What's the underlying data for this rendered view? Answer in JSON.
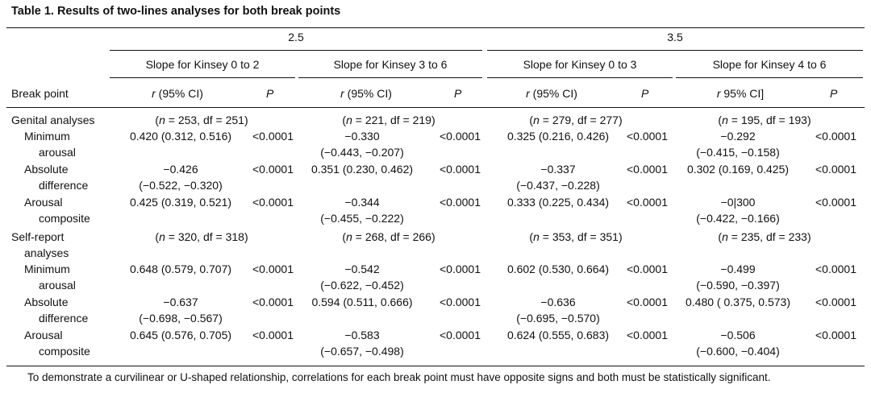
{
  "title": "Table 1.   Results of two-lines analyses for both break points",
  "groups": [
    "2.5",
    "3.5"
  ],
  "slopes": [
    "Slope for Kinsey 0 to 2",
    "Slope for Kinsey 3 to 6",
    "Slope for Kinsey 0 to 3",
    "Slope for Kinsey 4 to 6"
  ],
  "colhead": {
    "break_point": "Break point",
    "r_labels": [
      "r (95% CI)",
      "r (95% CI)",
      "r (95% CI)",
      "r 95% CI]"
    ],
    "p": "P"
  },
  "genital": {
    "label": "Genital analyses",
    "ns": [
      "(n = 253, df = 251)",
      "(n = 221, df = 219)",
      "(n = 279, df = 277)",
      "(n = 195, df = 193)"
    ],
    "rows": [
      {
        "label1": "Minimum",
        "label2": "arousal",
        "c1": "0.420 (0.312, 0.516)",
        "c1b": "",
        "p1": "<0.0001",
        "c2": "−0.330",
        "c2b": "(−0.443, −0.207)",
        "p2": "<0.0001",
        "c3": "0.325 (0.216, 0.426)",
        "c3b": "",
        "p3": "<0.0001",
        "c4": "−0.292",
        "c4b": "(−0.415, −0.158)",
        "p4": "<0.0001"
      },
      {
        "label1": "Absolute",
        "label2": "difference",
        "c1": "−0.426",
        "c1b": "(−0.522, −0.320)",
        "p1": "<0.0001",
        "c2": "0.351 (0.230, 0.462)",
        "c2b": "",
        "p2": "<0.0001",
        "c3": "−0.337",
        "c3b": "(−0.437, −0.228)",
        "p3": "<0.0001",
        "c4": "0.302 (0.169, 0.425)",
        "c4b": "",
        "p4": "<0.0001"
      },
      {
        "label1": "Arousal",
        "label2": "composite",
        "c1": "0.425 (0.319, 0.521)",
        "c1b": "",
        "p1": "<0.0001",
        "c2": "−0.344",
        "c2b": "(−0.455, −0.222)",
        "p2": "<0.0001",
        "c3": "0.333 (0.225, 0.434)",
        "c3b": "",
        "p3": "<0.0001",
        "c4": "−0|300",
        "c4b": "(−0.422, −0.166)",
        "p4": "<0.0001"
      }
    ]
  },
  "selfreport": {
    "label1": "Self-report",
    "label2": "analyses",
    "ns": [
      "(n = 320, df = 318)",
      "(n = 268, df = 266)",
      "(n = 353, df = 351)",
      "(n = 235, df = 233)"
    ],
    "rows": [
      {
        "label1": "Minimum",
        "label2": "arousal",
        "c1": "0.648 (0.579, 0.707)",
        "c1b": "",
        "p1": "<0.0001",
        "c2": "−0.542",
        "c2b": "(−0.622, −0.452)",
        "p2": "<0.0001",
        "c3": "0.602 (0.530, 0.664)",
        "c3b": "",
        "p3": "<0.0001",
        "c4": "−0.499",
        "c4b": "(−0.590, −0.397)",
        "p4": "<0.0001"
      },
      {
        "label1": "Absolute",
        "label2": "difference",
        "c1": "−0.637",
        "c1b": "(−0.698, −0.567)",
        "p1": "<0.0001",
        "c2": "0.594 (0.511, 0.666)",
        "c2b": "",
        "p2": "<0.0001",
        "c3": "−0.636",
        "c3b": "(−0.695, −0.570)",
        "p3": "<0.0001",
        "c4": "0.480 ( 0.375, 0.573)",
        "c4b": "",
        "p4": "<0.0001"
      },
      {
        "label1": "Arousal",
        "label2": "composite",
        "c1": "0.645 (0.576, 0.705)",
        "c1b": "",
        "p1": "<0.0001",
        "c2": "−0.583",
        "c2b": "(−0.657, −0.498)",
        "p2": "<0.0001",
        "c3": "0.624 (0.555, 0.683)",
        "c3b": "",
        "p3": "<0.0001",
        "c4": "−0.506",
        "c4b": "(−0.600, −0.404)",
        "p4": "<0.0001"
      }
    ]
  },
  "footnote": "To demonstrate a curvilinear or U-shaped relationship, correlations for each break point must have opposite signs and both must be statistically significant."
}
